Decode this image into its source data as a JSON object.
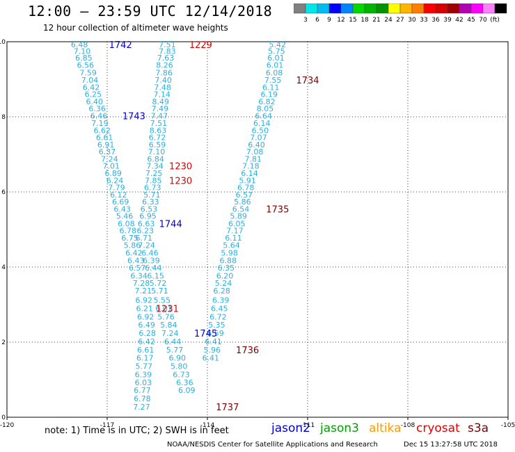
{
  "header": {
    "title": "12:00 — 23:59 UTC 12/14/2018",
    "subtitle": "12 hour collection of altimeter wave heights"
  },
  "colorbar": {
    "colors": [
      "#808080",
      "#00e5e5",
      "#00bcf2",
      "#0000ff",
      "#0084ff",
      "#00d800",
      "#00b400",
      "#009400",
      "#ffff00",
      "#ffb400",
      "#ff8000",
      "#ff0000",
      "#d80000",
      "#a00000",
      "#b400b4",
      "#ff00ff",
      "#ff80ff",
      "#000000"
    ],
    "labels": [
      "3",
      "6",
      "9",
      "12",
      "15",
      "18",
      "21",
      "24",
      "27",
      "30",
      "33",
      "36",
      "39",
      "42",
      "45",
      "70",
      "(ft)"
    ]
  },
  "footer": {
    "note": "note:  1) Time is in UTC;  2) SWH is in feet",
    "missions": [
      {
        "name": "jason2",
        "color": "#0000d0"
      },
      {
        "name": "jason3",
        "color": "#00a000"
      },
      {
        "name": "altika",
        "color": "#ff9a00"
      },
      {
        "name": "cryosat",
        "color": "#e00000"
      },
      {
        "name": "s3a",
        "color": "#7a0000"
      }
    ],
    "credits_left": "NOAA/NESDIS Center for Satellite Applications and Research",
    "credits_right": "Dec 15 13:27:58 UTC 2018"
  },
  "chart_data": {
    "type": "scatter",
    "title": "12:00 — 23:59 UTC 12/14/2018",
    "subtitle": "12 hour collection of altimeter wave heights",
    "xlim": [
      -120,
      -105
    ],
    "ylim": [
      0,
      10
    ],
    "xticks": [
      "-120",
      "-117",
      "-114",
      "-111",
      "-108",
      "-105"
    ],
    "yticks": [
      "0",
      "2",
      "4",
      "6",
      "8",
      "10"
    ],
    "grid": true,
    "value_color": "#2ab0e0",
    "series": [
      {
        "name": "",
        "values": [
          {
            "x": -117.83,
            "y": 9.93,
            "label": "6.48"
          },
          {
            "x": -117.75,
            "y": 9.75,
            "label": "7.10"
          },
          {
            "x": -117.7,
            "y": 9.57,
            "label": "6.85"
          },
          {
            "x": -117.65,
            "y": 9.38,
            "label": "6.56"
          },
          {
            "x": -117.57,
            "y": 9.18,
            "label": "7.59"
          },
          {
            "x": -117.52,
            "y": 8.98,
            "label": "7.04"
          },
          {
            "x": -117.48,
            "y": 8.79,
            "label": "6.42"
          },
          {
            "x": -117.42,
            "y": 8.6,
            "label": "6.25"
          },
          {
            "x": -117.38,
            "y": 8.41,
            "label": "6.40"
          },
          {
            "x": -117.3,
            "y": 8.22,
            "label": "6.36"
          },
          {
            "x": -117.25,
            "y": 8.03,
            "label": "6.46"
          },
          {
            "x": -117.22,
            "y": 7.83,
            "label": "7.19"
          },
          {
            "x": -117.15,
            "y": 7.64,
            "label": "6.62"
          },
          {
            "x": -117.08,
            "y": 7.45,
            "label": "6.61"
          },
          {
            "x": -117.04,
            "y": 7.26,
            "label": "6.91"
          },
          {
            "x": -117.0,
            "y": 7.07,
            "label": "6.37"
          },
          {
            "x": -116.93,
            "y": 6.88,
            "label": "7.24"
          },
          {
            "x": -116.88,
            "y": 6.69,
            "label": "7.01"
          },
          {
            "x": -116.82,
            "y": 6.5,
            "label": "6.89"
          },
          {
            "x": -116.77,
            "y": 6.31,
            "label": "6.24"
          },
          {
            "x": -116.72,
            "y": 6.12,
            "label": "7.79"
          },
          {
            "x": -116.66,
            "y": 5.93,
            "label": "6.12"
          },
          {
            "x": -116.6,
            "y": 5.74,
            "label": "6.69"
          },
          {
            "x": -116.55,
            "y": 5.55,
            "label": "6.43"
          },
          {
            "x": -116.48,
            "y": 5.36,
            "label": "5.46"
          },
          {
            "x": -116.43,
            "y": 5.16,
            "label": "6.08"
          },
          {
            "x": -116.38,
            "y": 4.97,
            "label": "6.78"
          },
          {
            "x": -116.32,
            "y": 4.78,
            "label": "6.75"
          },
          {
            "x": -116.25,
            "y": 4.58,
            "label": "5.86"
          },
          {
            "x": -116.2,
            "y": 4.38,
            "label": "6.42"
          },
          {
            "x": -116.14,
            "y": 4.18,
            "label": "6.43"
          },
          {
            "x": -116.1,
            "y": 3.98,
            "label": "6.57"
          },
          {
            "x": -116.05,
            "y": 3.77,
            "label": "6.34"
          },
          {
            "x": -115.98,
            "y": 3.57,
            "label": "7.28"
          },
          {
            "x": -115.92,
            "y": 3.37,
            "label": "7.21"
          },
          {
            "x": -115.9,
            "y": 3.12,
            "label": "6.92"
          },
          {
            "x": -115.88,
            "y": 2.9,
            "label": "6.21"
          },
          {
            "x": -115.85,
            "y": 2.68,
            "label": "6.92"
          },
          {
            "x": -115.82,
            "y": 2.46,
            "label": "6.49"
          },
          {
            "x": -115.8,
            "y": 2.24,
            "label": "6.28"
          },
          {
            "x": -115.82,
            "y": 2.02,
            "label": "6.42"
          },
          {
            "x": -115.85,
            "y": 1.8,
            "label": "6.61"
          },
          {
            "x": -115.87,
            "y": 1.58,
            "label": "6.17"
          },
          {
            "x": -115.9,
            "y": 1.36,
            "label": "5.77"
          },
          {
            "x": -115.92,
            "y": 1.14,
            "label": "6.39"
          },
          {
            "x": -115.92,
            "y": 0.93,
            "label": "6.03"
          },
          {
            "x": -115.95,
            "y": 0.72,
            "label": "6.77"
          },
          {
            "x": -115.95,
            "y": 0.5,
            "label": "6.78"
          },
          {
            "x": -115.97,
            "y": 0.28,
            "label": "7.27"
          }
        ]
      },
      {
        "name": "",
        "values": [
          {
            "x": -115.2,
            "y": 9.93,
            "label": "7.51"
          },
          {
            "x": -115.2,
            "y": 9.75,
            "label": "7.83"
          },
          {
            "x": -115.25,
            "y": 9.57,
            "label": "7.63"
          },
          {
            "x": -115.28,
            "y": 9.38,
            "label": "8.26"
          },
          {
            "x": -115.3,
            "y": 9.18,
            "label": "7.86"
          },
          {
            "x": -115.32,
            "y": 8.98,
            "label": "7.40"
          },
          {
            "x": -115.34,
            "y": 8.79,
            "label": "7.48"
          },
          {
            "x": -115.36,
            "y": 8.6,
            "label": "7.14"
          },
          {
            "x": -115.4,
            "y": 8.41,
            "label": "8.49"
          },
          {
            "x": -115.42,
            "y": 8.22,
            "label": "7.49"
          },
          {
            "x": -115.44,
            "y": 8.03,
            "label": "7.47"
          },
          {
            "x": -115.46,
            "y": 7.83,
            "label": "7.51"
          },
          {
            "x": -115.48,
            "y": 7.64,
            "label": "8.63"
          },
          {
            "x": -115.5,
            "y": 7.45,
            "label": "6.72"
          },
          {
            "x": -115.5,
            "y": 7.26,
            "label": "6.59"
          },
          {
            "x": -115.52,
            "y": 7.07,
            "label": "7.10"
          },
          {
            "x": -115.55,
            "y": 6.88,
            "label": "6.84"
          },
          {
            "x": -115.57,
            "y": 6.69,
            "label": "7.34"
          },
          {
            "x": -115.6,
            "y": 6.5,
            "label": "7.25"
          },
          {
            "x": -115.62,
            "y": 6.31,
            "label": "7.85"
          },
          {
            "x": -115.64,
            "y": 6.12,
            "label": "6.73"
          },
          {
            "x": -115.66,
            "y": 5.93,
            "label": "5.71"
          },
          {
            "x": -115.7,
            "y": 5.74,
            "label": "6.33"
          },
          {
            "x": -115.75,
            "y": 5.55,
            "label": "6.53"
          },
          {
            "x": -115.78,
            "y": 5.36,
            "label": "6.95"
          },
          {
            "x": -115.83,
            "y": 5.16,
            "label": "6.63"
          },
          {
            "x": -115.86,
            "y": 4.97,
            "label": "6.23"
          },
          {
            "x": -115.9,
            "y": 4.78,
            "label": "6.71"
          },
          {
            "x": -115.82,
            "y": 4.58,
            "label": "7.24"
          },
          {
            "x": -115.72,
            "y": 4.38,
            "label": "6.46"
          },
          {
            "x": -115.68,
            "y": 4.18,
            "label": "6.39"
          },
          {
            "x": -115.62,
            "y": 3.98,
            "label": "6.44"
          },
          {
            "x": -115.55,
            "y": 3.77,
            "label": "6.15"
          },
          {
            "x": -115.48,
            "y": 3.57,
            "label": "5.72"
          },
          {
            "x": -115.43,
            "y": 3.37,
            "label": "5.71"
          },
          {
            "x": -115.36,
            "y": 3.12,
            "label": "5.55"
          },
          {
            "x": -115.3,
            "y": 2.9,
            "label": "6.01"
          },
          {
            "x": -115.24,
            "y": 2.68,
            "label": "5.76"
          },
          {
            "x": -115.16,
            "y": 2.46,
            "label": "5.84"
          },
          {
            "x": -115.12,
            "y": 2.24,
            "label": "7.24"
          },
          {
            "x": -115.04,
            "y": 2.02,
            "label": "6.44"
          },
          {
            "x": -114.98,
            "y": 1.8,
            "label": "5.77"
          },
          {
            "x": -114.9,
            "y": 1.58,
            "label": "6.90"
          },
          {
            "x": -114.85,
            "y": 1.36,
            "label": "5.80"
          },
          {
            "x": -114.78,
            "y": 1.14,
            "label": "6.73"
          },
          {
            "x": -114.68,
            "y": 0.93,
            "label": "6.36"
          },
          {
            "x": -114.62,
            "y": 0.72,
            "label": "6.09"
          }
        ]
      },
      {
        "name": "",
        "values": [
          {
            "x": -111.9,
            "y": 9.93,
            "label": "5.42"
          },
          {
            "x": -111.93,
            "y": 9.75,
            "label": "5.75"
          },
          {
            "x": -111.95,
            "y": 9.57,
            "label": "6.01"
          },
          {
            "x": -111.98,
            "y": 9.38,
            "label": "6.01"
          },
          {
            "x": -112.0,
            "y": 9.18,
            "label": "6.08"
          },
          {
            "x": -112.04,
            "y": 8.98,
            "label": "7.55"
          },
          {
            "x": -112.1,
            "y": 8.79,
            "label": "6.11"
          },
          {
            "x": -112.15,
            "y": 8.6,
            "label": "6.19"
          },
          {
            "x": -112.22,
            "y": 8.41,
            "label": "6.82"
          },
          {
            "x": -112.27,
            "y": 8.22,
            "label": "8.05"
          },
          {
            "x": -112.32,
            "y": 8.03,
            "label": "6.64"
          },
          {
            "x": -112.37,
            "y": 7.83,
            "label": "6.14"
          },
          {
            "x": -112.42,
            "y": 7.64,
            "label": "6.50"
          },
          {
            "x": -112.47,
            "y": 7.45,
            "label": "7.07"
          },
          {
            "x": -112.53,
            "y": 7.26,
            "label": "6.40"
          },
          {
            "x": -112.58,
            "y": 7.07,
            "label": "7.08"
          },
          {
            "x": -112.63,
            "y": 6.88,
            "label": "7.81"
          },
          {
            "x": -112.7,
            "y": 6.69,
            "label": "7.18"
          },
          {
            "x": -112.74,
            "y": 6.5,
            "label": "6.14"
          },
          {
            "x": -112.8,
            "y": 6.31,
            "label": "5.91"
          },
          {
            "x": -112.85,
            "y": 6.12,
            "label": "6.78"
          },
          {
            "x": -112.9,
            "y": 5.93,
            "label": "6.57"
          },
          {
            "x": -112.95,
            "y": 5.74,
            "label": "5.86"
          },
          {
            "x": -113.0,
            "y": 5.55,
            "label": "6.54"
          },
          {
            "x": -113.07,
            "y": 5.36,
            "label": "5.89"
          },
          {
            "x": -113.12,
            "y": 5.16,
            "label": "6.05"
          },
          {
            "x": -113.18,
            "y": 4.97,
            "label": "7.17"
          },
          {
            "x": -113.22,
            "y": 4.78,
            "label": "6.11"
          },
          {
            "x": -113.28,
            "y": 4.58,
            "label": "5.64"
          },
          {
            "x": -113.34,
            "y": 4.38,
            "label": "5.98"
          },
          {
            "x": -113.38,
            "y": 4.18,
            "label": "6.88"
          },
          {
            "x": -113.44,
            "y": 3.98,
            "label": "6.35"
          },
          {
            "x": -113.48,
            "y": 3.77,
            "label": "6.20"
          },
          {
            "x": -113.52,
            "y": 3.57,
            "label": "5.24"
          },
          {
            "x": -113.57,
            "y": 3.37,
            "label": "6.28"
          },
          {
            "x": -113.6,
            "y": 3.12,
            "label": "6.39"
          },
          {
            "x": -113.64,
            "y": 2.9,
            "label": "6.45"
          },
          {
            "x": -113.68,
            "y": 2.68,
            "label": "6.72"
          },
          {
            "x": -113.72,
            "y": 2.46,
            "label": "5.35"
          },
          {
            "x": -113.76,
            "y": 2.24,
            "label": "6.59"
          },
          {
            "x": -113.82,
            "y": 2.02,
            "label": "6.41"
          },
          {
            "x": -113.86,
            "y": 1.8,
            "label": "5.96"
          },
          {
            "x": -113.9,
            "y": 1.58,
            "label": "6.41"
          }
        ]
      }
    ],
    "time_labels": [
      {
        "x": -116.6,
        "y": 9.93,
        "text": "1742",
        "color": "#0000d0"
      },
      {
        "x": -116.2,
        "y": 8.03,
        "text": "1743",
        "color": "#0000d0"
      },
      {
        "x": -115.1,
        "y": 5.16,
        "text": "1744",
        "color": "#0000d0"
      },
      {
        "x": -114.05,
        "y": 2.24,
        "text": "1745",
        "color": "#0000d0"
      },
      {
        "x": -114.2,
        "y": 9.93,
        "text": "1229",
        "color": "#e00000"
      },
      {
        "x": -114.8,
        "y": 6.69,
        "text": "1230",
        "color": "#e00000"
      },
      {
        "x": -114.8,
        "y": 6.31,
        "text": "1230",
        "color": "#e00000"
      },
      {
        "x": -115.2,
        "y": 2.9,
        "text": "1231",
        "color": "#e00000"
      },
      {
        "x": -111.0,
        "y": 8.98,
        "text": "1734",
        "color": "#7a0000"
      },
      {
        "x": -111.9,
        "y": 5.55,
        "text": "1735",
        "color": "#7a0000"
      },
      {
        "x": -112.8,
        "y": 1.8,
        "text": "1736",
        "color": "#7a0000"
      },
      {
        "x": -113.4,
        "y": 0.28,
        "text": "1737",
        "color": "#7a0000"
      }
    ]
  }
}
